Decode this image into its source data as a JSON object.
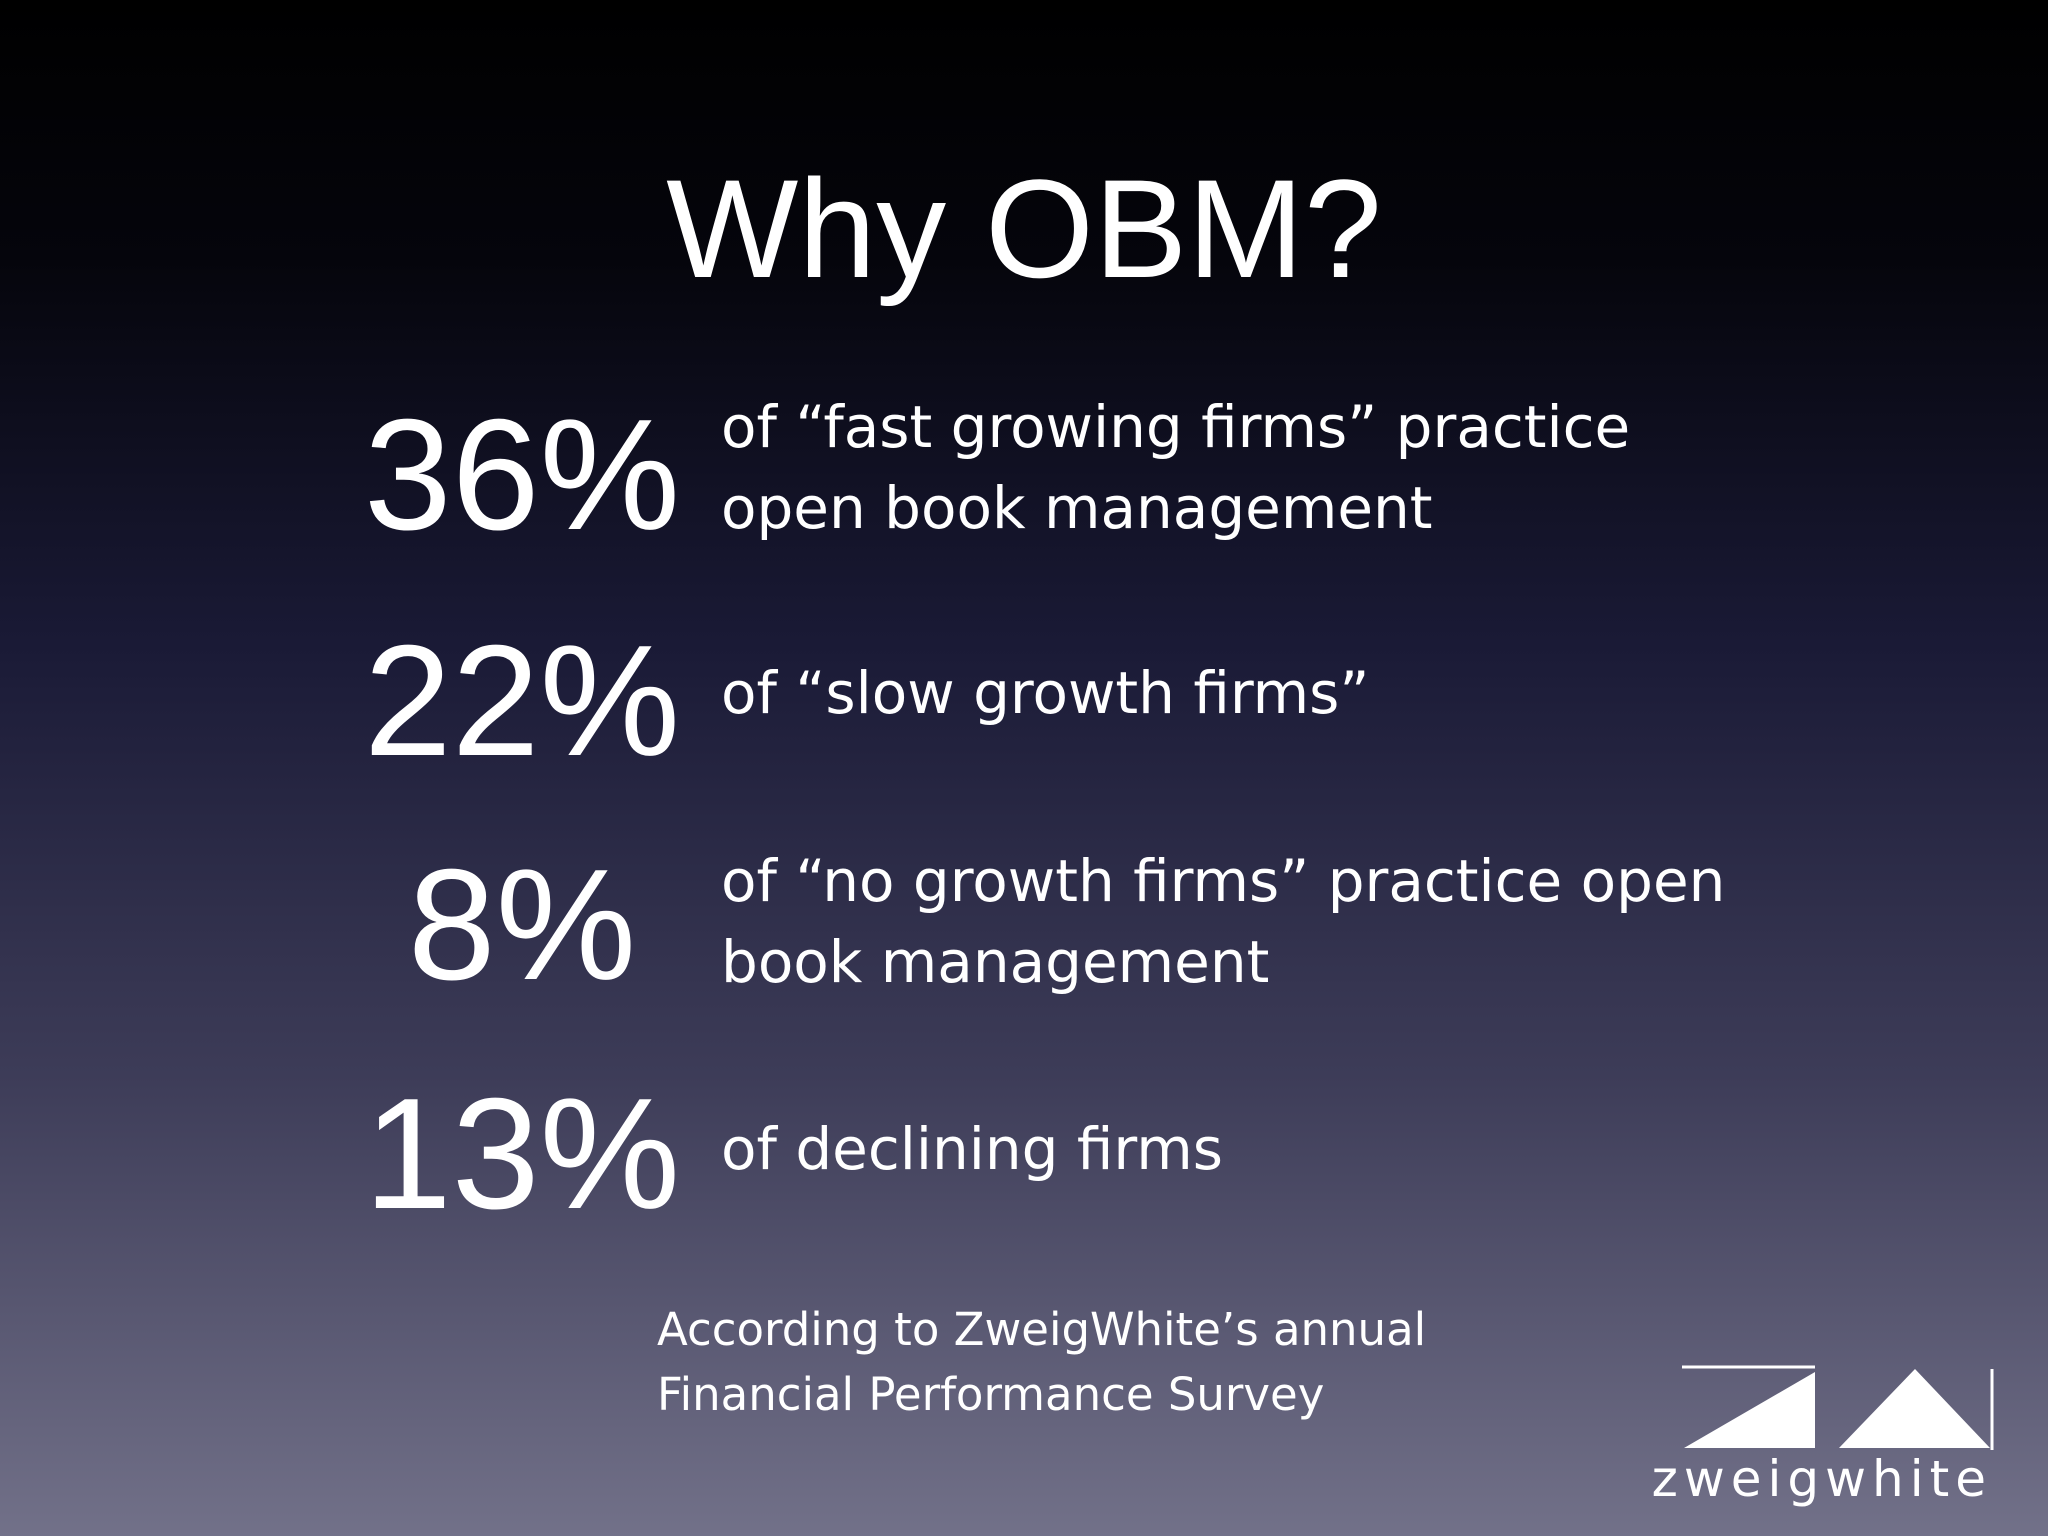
{
  "slide": {
    "title": "Why OBM?",
    "stats": [
      {
        "figure": "36%",
        "text_lines": [
          "of “fast growing firms” practice",
          "open book management"
        ]
      },
      {
        "figure": "22%",
        "text_lines": [
          "of “slow growth firms”"
        ]
      },
      {
        "figure": "8%",
        "text_lines": [
          "of “no growth firms” practice open",
          "book management"
        ]
      },
      {
        "figure": "13%",
        "text_lines": [
          "of declining firms"
        ]
      }
    ],
    "source_lines": [
      "According to ZweigWhite’s annual",
      "Financial Performance Survey"
    ],
    "logo_text": "zweigwhite"
  }
}
